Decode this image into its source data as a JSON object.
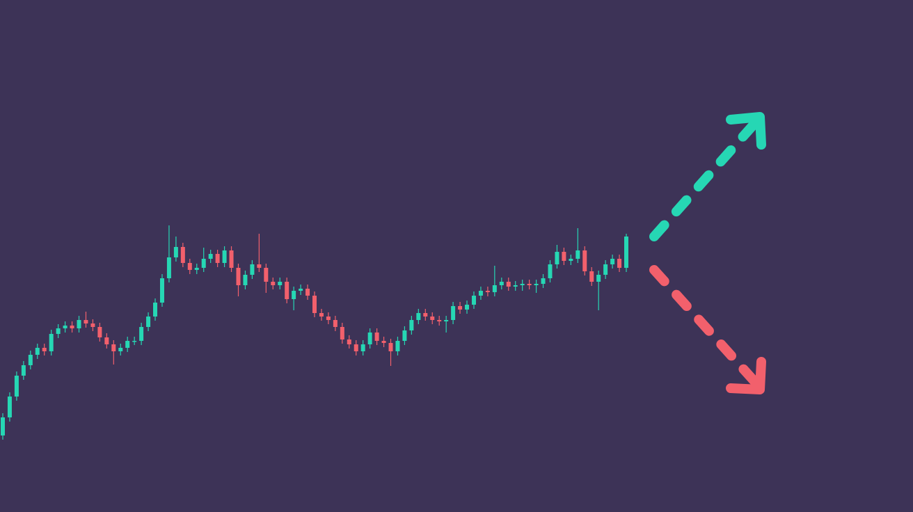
{
  "chart_data": {
    "type": "candlestick",
    "categories": [
      null,
      null,
      null,
      null,
      null,
      null,
      null,
      null,
      null,
      null,
      null,
      null,
      null,
      null,
      null,
      null,
      null,
      null,
      null,
      null,
      null,
      null,
      null,
      null,
      null,
      null,
      null,
      null,
      null,
      null,
      null,
      null,
      null,
      null,
      null,
      null,
      null,
      null,
      null,
      null,
      null,
      null,
      null,
      null,
      null,
      null,
      null,
      null,
      null,
      null,
      null,
      null,
      null,
      null,
      null,
      null,
      null,
      null,
      null,
      null,
      null,
      null,
      null,
      null,
      null,
      null,
      null,
      null,
      null,
      null,
      null,
      null,
      null,
      null,
      null,
      null,
      null,
      null,
      null,
      null,
      null,
      null,
      null,
      null,
      null,
      null,
      null,
      null,
      null,
      null,
      null
    ],
    "open": [
      110,
      136,
      166,
      196,
      211,
      226,
      236,
      231,
      256,
      264,
      268,
      264,
      276,
      271,
      266,
      251,
      241,
      231,
      236,
      246,
      246,
      266,
      281,
      301,
      336,
      366,
      381,
      358,
      348,
      351,
      364,
      371,
      358,
      376,
      351,
      326,
      341,
      356,
      351,
      331,
      326,
      331,
      306,
      318,
      321,
      311,
      286,
      281,
      276,
      266,
      248,
      241,
      231,
      241,
      258,
      246,
      243,
      231,
      246,
      261,
      276,
      286,
      281,
      276,
      274,
      276,
      296,
      291,
      298,
      311,
      318,
      316,
      326,
      331,
      324,
      326,
      328,
      326,
      328,
      336,
      356,
      374,
      361,
      364,
      376,
      346,
      331,
      341,
      356,
      364,
      351
    ],
    "high": [
      142,
      172,
      202,
      217,
      232,
      242,
      242,
      262,
      270,
      274,
      274,
      282,
      288,
      277,
      272,
      257,
      247,
      242,
      252,
      252,
      272,
      287,
      307,
      342,
      412,
      396,
      387,
      364,
      357,
      380,
      377,
      377,
      382,
      382,
      357,
      347,
      362,
      400,
      357,
      337,
      337,
      337,
      324,
      327,
      327,
      317,
      292,
      287,
      282,
      272,
      254,
      247,
      247,
      264,
      264,
      252,
      249,
      252,
      267,
      282,
      292,
      292,
      287,
      282,
      282,
      302,
      302,
      304,
      317,
      324,
      324,
      354,
      337,
      337,
      332,
      334,
      334,
      334,
      342,
      362,
      384,
      380,
      370,
      408,
      382,
      352,
      347,
      362,
      370,
      370,
      400
    ],
    "low": [
      104,
      130,
      160,
      190,
      205,
      220,
      225,
      225,
      250,
      258,
      258,
      258,
      265,
      260,
      245,
      235,
      212,
      225,
      230,
      240,
      240,
      260,
      275,
      295,
      330,
      360,
      352,
      342,
      342,
      345,
      358,
      352,
      352,
      345,
      310,
      320,
      335,
      345,
      315,
      320,
      320,
      300,
      290,
      312,
      305,
      280,
      275,
      270,
      260,
      242,
      235,
      225,
      225,
      235,
      240,
      237,
      210,
      225,
      240,
      255,
      270,
      275,
      270,
      268,
      258,
      270,
      285,
      285,
      292,
      305,
      310,
      310,
      320,
      318,
      318,
      318,
      320,
      315,
      322,
      330,
      350,
      355,
      355,
      358,
      340,
      325,
      290,
      335,
      350,
      345,
      345
    ],
    "close": [
      136,
      166,
      196,
      211,
      226,
      236,
      231,
      256,
      264,
      268,
      264,
      276,
      271,
      266,
      251,
      241,
      231,
      236,
      246,
      246,
      266,
      281,
      301,
      336,
      366,
      381,
      358,
      348,
      351,
      364,
      371,
      358,
      376,
      351,
      326,
      341,
      356,
      351,
      331,
      326,
      331,
      306,
      318,
      321,
      311,
      286,
      281,
      276,
      266,
      248,
      241,
      231,
      241,
      258,
      246,
      243,
      231,
      246,
      261,
      276,
      286,
      281,
      276,
      274,
      276,
      296,
      291,
      298,
      311,
      318,
      316,
      326,
      331,
      324,
      326,
      328,
      326,
      328,
      336,
      356,
      374,
      361,
      364,
      376,
      346,
      331,
      341,
      356,
      364,
      351,
      396
    ],
    "up_color": "#26d7b4",
    "down_color": "#f2606c",
    "ylim": [
      0,
      736
    ]
  }
}
